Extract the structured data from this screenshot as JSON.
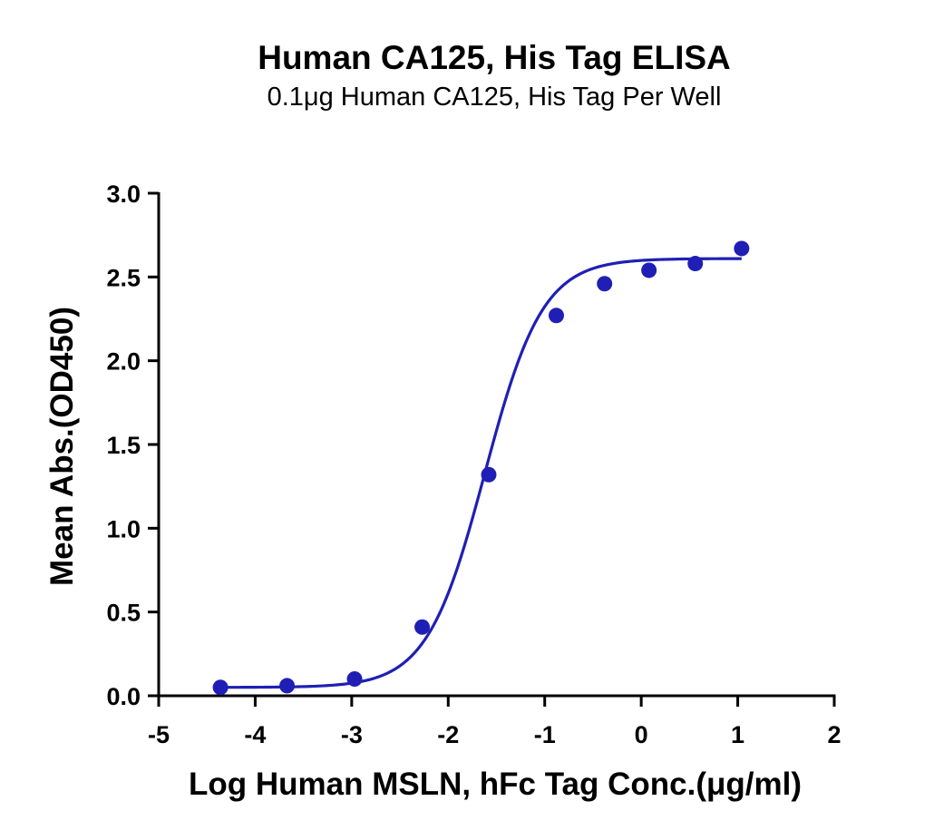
{
  "chart_data": {
    "type": "scatter",
    "title": "Human CA125, His Tag ELISA",
    "subtitle": "0.1μg Human CA125, His Tag Per Well",
    "xlabel": "Log Human MSLN, hFc Tag Conc.(μg/ml)",
    "ylabel": "Mean Abs.(OD450)",
    "xlim": [
      -5,
      2
    ],
    "ylim": [
      0,
      3
    ],
    "xticks": [
      "-5",
      "-4",
      "-3",
      "-2",
      "-1",
      "0",
      "1",
      "2"
    ],
    "yticks": [
      "0.0",
      "0.5",
      "1.0",
      "1.5",
      "2.0",
      "2.5",
      "3.0"
    ],
    "grid": false,
    "legend": "none",
    "color": "#1f1fb5",
    "series": [
      {
        "x": [
          -4.36,
          -3.67,
          -2.97,
          -2.27,
          -1.58,
          -0.88,
          -0.38,
          0.08,
          0.56,
          1.04
        ],
        "y": [
          0.05,
          0.06,
          0.1,
          0.41,
          1.32,
          2.27,
          2.46,
          2.54,
          2.58,
          2.67
        ]
      }
    ],
    "fit": {
      "type": "4PL",
      "x_range": [
        -4.36,
        1.04
      ],
      "bottom": 0.05,
      "top": 2.61,
      "log_ec50": -1.62,
      "hill_slope": 1.45
    }
  }
}
